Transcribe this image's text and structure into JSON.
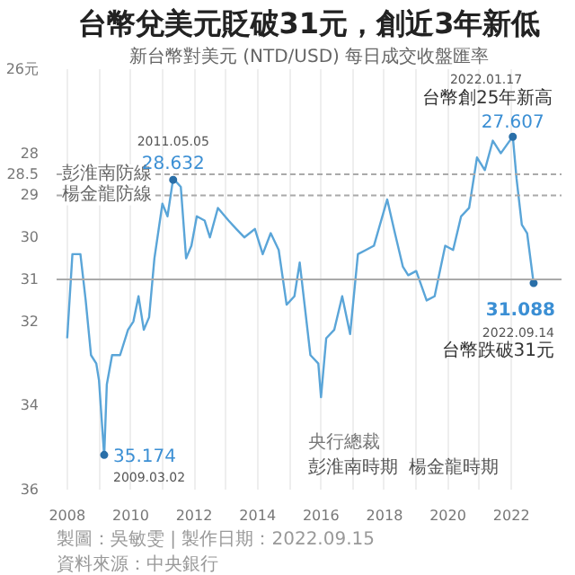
{
  "chart_data": {
    "type": "line",
    "title": "台幣兌美元貶破31元，創近3年新低",
    "subtitle": "新台幣對美元 (NTD/USD) 每日成交收盤匯率",
    "x": [
      "2008-01",
      "2008-03",
      "2008-06",
      "2008-08",
      "2008-10",
      "2008-12",
      "2009-01",
      "2009-03-02",
      "2009-04",
      "2009-06",
      "2009-09",
      "2009-12",
      "2010-02",
      "2010-04",
      "2010-06",
      "2010-08",
      "2010-10",
      "2011-01",
      "2011-03",
      "2011-05-05",
      "2011-08",
      "2011-10",
      "2011-12",
      "2012-02",
      "2012-05",
      "2012-07",
      "2012-10",
      "2013-02",
      "2013-05",
      "2013-08",
      "2013-12",
      "2014-03",
      "2014-06",
      "2014-09",
      "2014-12",
      "2015-03",
      "2015-05",
      "2015-09",
      "2015-12",
      "2016-01",
      "2016-03",
      "2016-06",
      "2016-09",
      "2016-12",
      "2017-03",
      "2017-06",
      "2017-09",
      "2018-02",
      "2018-05",
      "2018-08",
      "2018-10",
      "2019-01",
      "2019-05",
      "2019-08",
      "2019-12",
      "2020-03",
      "2020-06",
      "2020-09",
      "2020-12",
      "2021-03",
      "2021-06",
      "2021-09",
      "2022-01-17",
      "2022-03",
      "2022-05",
      "2022-07",
      "2022-09-14"
    ],
    "series": [
      {
        "color": "#5aa5d8",
        "values": [
          32.4,
          30.4,
          30.4,
          31.5,
          32.8,
          33.0,
          33.4,
          35.2,
          33.5,
          32.8,
          32.8,
          32.2,
          32.0,
          31.4,
          32.2,
          31.9,
          30.5,
          29.2,
          29.5,
          28.6,
          28.8,
          30.5,
          30.2,
          29.5,
          29.6,
          30.0,
          29.3,
          29.6,
          29.8,
          30.0,
          29.8,
          30.4,
          29.9,
          30.3,
          31.6,
          31.4,
          30.6,
          32.8,
          33.0,
          33.8,
          32.4,
          32.2,
          31.4,
          32.3,
          30.4,
          30.3,
          30.2,
          29.1,
          29.9,
          30.7,
          30.9,
          30.8,
          31.5,
          31.4,
          30.2,
          30.3,
          29.5,
          29.3,
          28.1,
          28.4,
          27.7,
          28.0,
          27.6,
          28.6,
          29.7,
          29.9,
          31.1
        ]
      }
    ],
    "xlim": [
      "2007-09",
      "2023-08"
    ],
    "xticks": [
      {
        "value": "2008",
        "label": "2008"
      },
      {
        "value": "2009",
        "label": null
      },
      {
        "value": "2010",
        "label": "2010"
      },
      {
        "value": "2011",
        "label": null
      },
      {
        "value": "2012",
        "label": "2012"
      },
      {
        "value": "2013",
        "label": null
      },
      {
        "value": "2014",
        "label": "2014"
      },
      {
        "value": "2015",
        "label": null
      },
      {
        "value": "2016",
        "label": "2016"
      },
      {
        "value": "2017",
        "label": null
      },
      {
        "value": "2018",
        "label": "2018"
      },
      {
        "value": "2019",
        "label": null
      },
      {
        "value": "2020",
        "label": "2020"
      },
      {
        "value": "2021",
        "label": null
      },
      {
        "value": "2022",
        "label": "2022"
      }
    ],
    "ylim": [
      36,
      26
    ],
    "yticks": [
      {
        "value": 26,
        "label": "26元"
      },
      28,
      28.5,
      29,
      30,
      31,
      32,
      34,
      36
    ],
    "grid": "x",
    "marker": "none",
    "line_style": "solid",
    "ref_lines": [
      {
        "axis": "y",
        "value": 28.5,
        "label": "彭淮南防線",
        "color": "#aaaaaa",
        "line_style": "dashed"
      },
      {
        "axis": "y",
        "value": 29,
        "label": "楊金龍防線",
        "color": "#aaaaaa",
        "line_style": "dashed"
      },
      {
        "axis": "y",
        "value": 31,
        "color": "#aaaaaa",
        "line_style": "solid"
      }
    ],
    "annotations": [
      {
        "text": "2011.05.05",
        "x": "2011-05-05",
        "y": 28.632
      },
      {
        "text": "28.632",
        "x": "2011-05-05",
        "y": 28.632
      },
      {
        "text": "台幣創25年新高",
        "x": "2022-01-17",
        "y": 27.607
      },
      {
        "text": "27.607",
        "x": "2022-01-17",
        "y": 27.607
      },
      {
        "text": "31.088",
        "x": "2022-09-14",
        "y": 31.088
      },
      {
        "text": "35.174",
        "x": "2009-03-02",
        "y": 35.174
      },
      {
        "text": "2009.03.02",
        "x": "2009-03-02",
        "y": 35.174
      },
      "2022.01.17",
      "2022.09.14",
      "台幣跌破31元",
      "央行總裁",
      "彭淮南時期",
      "楊金龍時期",
      "製圖：吳敏雯 | 製作日期：2022.09.15",
      "資料來源：中央銀行"
    ]
  }
}
